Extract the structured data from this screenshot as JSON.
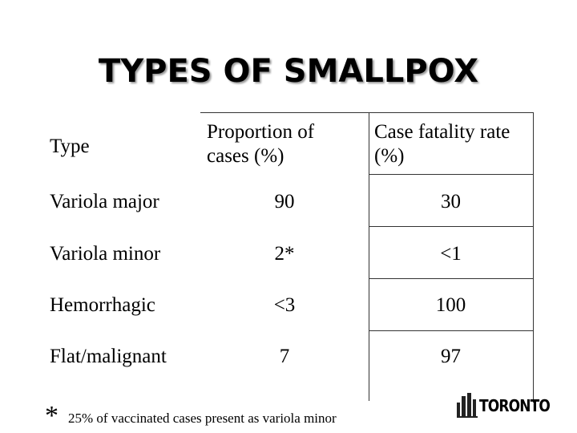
{
  "header": {
    "title": "TYPES OF SMALLPOX"
  },
  "table": {
    "columns": [
      "Type",
      "Proportion of cases (%)",
      "Case fatality rate (%)"
    ],
    "rows": [
      [
        "Variola major",
        "90",
        "30"
      ],
      [
        "Variola minor",
        "2*",
        "<1"
      ],
      [
        "Hemorrhagic",
        "<3",
        "100"
      ],
      [
        "Flat/malignant",
        "7",
        "97"
      ]
    ]
  },
  "footnote": {
    "marker": "*",
    "text": "25% of vaccinated cases present as variola minor"
  },
  "logo": {
    "text": "TORONTO"
  }
}
